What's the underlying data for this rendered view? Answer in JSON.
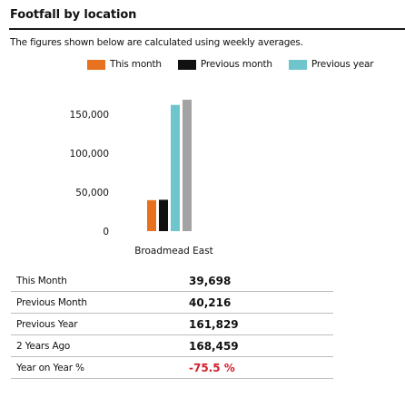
{
  "header": {
    "title": "Footfall by location",
    "subtitle": "The figures shown below are calculated using weekly averages."
  },
  "legend": [
    {
      "label": "This month",
      "color": "#e8711f"
    },
    {
      "label": "Previous month",
      "color": "#111111"
    },
    {
      "label": "Previous year",
      "color": "#6ec6cc"
    }
  ],
  "chart_data": {
    "type": "bar",
    "title": "",
    "xlabel": "",
    "ylabel": "",
    "categories": [
      "Broadmead East"
    ],
    "series": [
      {
        "name": "This month",
        "color": "#e8711f",
        "values": [
          39698
        ]
      },
      {
        "name": "Previous month",
        "color": "#111111",
        "values": [
          40216
        ]
      },
      {
        "name": "Previous year",
        "color": "#6ec6cc",
        "values": [
          161829
        ]
      },
      {
        "color": "#a3a3a3",
        "values": [
          168459
        ]
      }
    ],
    "y_ticks": [
      0,
      50000,
      100000,
      150000
    ],
    "y_tick_labels": [
      "0",
      "50,000",
      "100,000",
      "150,000"
    ],
    "ylim": [
      0,
      168459
    ],
    "grid": false,
    "legend_position": "top"
  },
  "stats": {
    "rows": [
      {
        "label": "This Month",
        "value": "39,698"
      },
      {
        "label": "Previous Month",
        "value": "40,216"
      },
      {
        "label": "Previous Year",
        "value": "161,829"
      },
      {
        "label": "2 Years Ago",
        "value": "168,459"
      },
      {
        "label": "Year on Year %",
        "value": "-75.5 %",
        "negative": true
      }
    ]
  }
}
